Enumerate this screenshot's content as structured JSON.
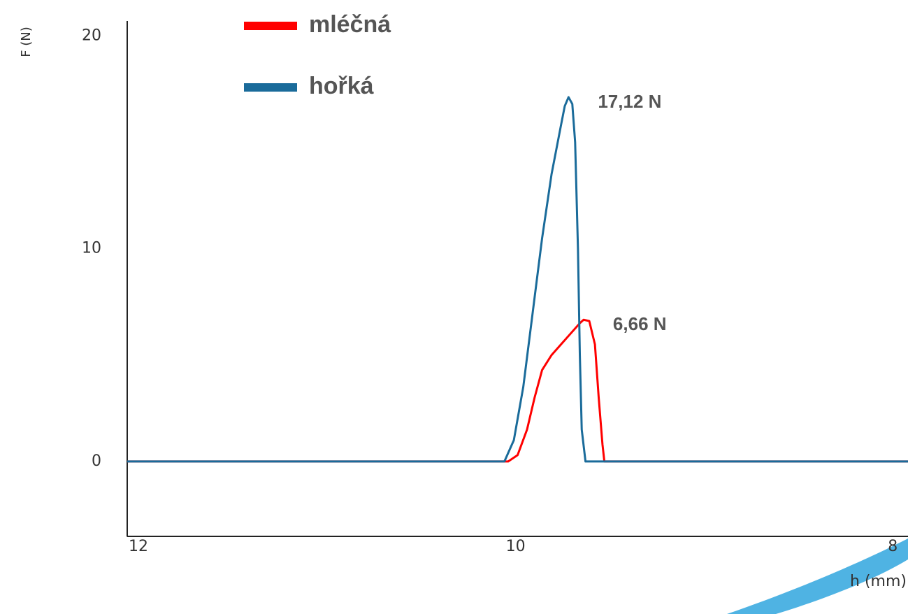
{
  "chart_data": {
    "type": "line",
    "xlabel": "h (mm)",
    "ylabel": "F (N)",
    "xlim": [
      12,
      7.86
    ],
    "xticks": [
      12,
      10,
      8
    ],
    "ylim": [
      -3.52,
      20.7
    ],
    "yticks": [
      0,
      10,
      20
    ],
    "series": [
      {
        "name": "mléčná",
        "color": "#ff0000",
        "peak_label": "6,66 N",
        "x": [
          12,
          9.98,
          9.93,
          9.88,
          9.84,
          9.8,
          9.75,
          9.7,
          9.65,
          9.6,
          9.58,
          9.55,
          9.52,
          9.5,
          9.48,
          9.47,
          7.86
        ],
        "values": [
          0,
          0,
          0.3,
          1.5,
          3,
          4.3,
          5.0,
          5.5,
          6.0,
          6.5,
          6.66,
          6.6,
          5.5,
          3,
          0.8,
          0,
          0
        ]
      },
      {
        "name": "hořká",
        "color": "#1a6b9a",
        "peak_label": "17,12 N",
        "x": [
          12,
          10.0,
          9.95,
          9.9,
          9.85,
          9.8,
          9.75,
          9.7,
          9.68,
          9.66,
          9.64,
          9.625,
          9.61,
          9.6,
          9.59,
          9.57,
          7.86
        ],
        "values": [
          0,
          0,
          1.0,
          3.5,
          7,
          10.5,
          13.5,
          15.8,
          16.7,
          17.12,
          16.8,
          15,
          10,
          5,
          1.5,
          0,
          0
        ]
      }
    ]
  }
}
